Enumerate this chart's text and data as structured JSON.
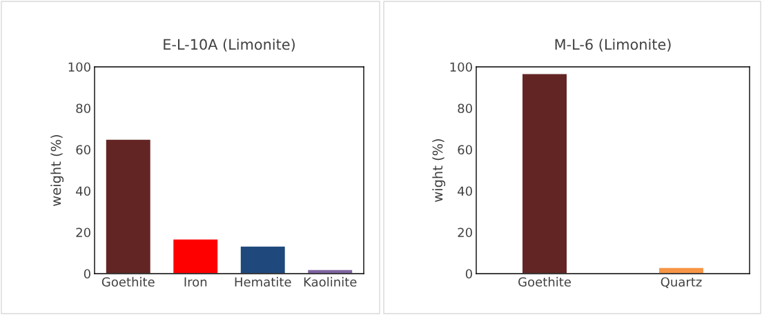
{
  "chart_data": [
    {
      "type": "bar",
      "title": "E-L-10A (Limonite)",
      "ylabel": "weight (%)",
      "categories": [
        "Goethite",
        "Iron",
        "Hematite",
        "Kaolinite"
      ],
      "values": [
        65,
        16.7,
        13.3,
        2
      ],
      "colors": [
        "#632523",
        "#ff0000",
        "#1f497d",
        "#8064a2"
      ],
      "ylim": [
        0,
        100
      ],
      "yticks": [
        0,
        20,
        40,
        60,
        80,
        100
      ],
      "grid": false,
      "legend": false
    },
    {
      "type": "bar",
      "title": "M-L-6 (Limonite)",
      "ylabel": "wight (%)",
      "categories": [
        "Goethite",
        "Quartz"
      ],
      "values": [
        96.7,
        3
      ],
      "colors": [
        "#632523",
        "#f79646"
      ],
      "ylim": [
        0,
        100
      ],
      "yticks": [
        0,
        20,
        40,
        60,
        80,
        100
      ],
      "grid": false,
      "legend": false
    }
  ]
}
